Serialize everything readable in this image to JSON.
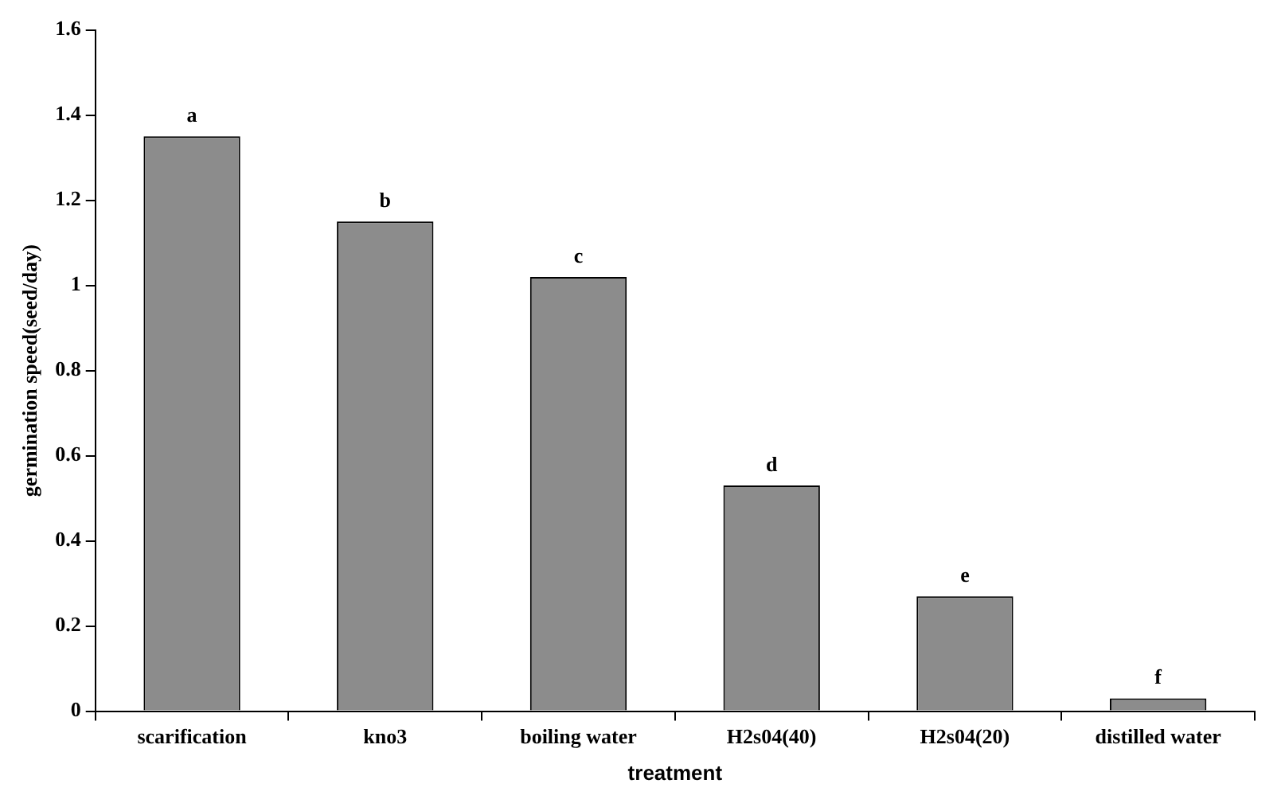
{
  "chart_data": {
    "type": "bar",
    "xlabel": "treatment",
    "ylabel": "germination speed(seed/day)",
    "categories": [
      "scarification",
      "kno3",
      "boiling water",
      "H2s04(40)",
      "H2s04(20)",
      "distilled water"
    ],
    "values": [
      1.35,
      1.15,
      1.02,
      0.53,
      0.27,
      0.03
    ],
    "color": "#8c8c8c",
    "ylim": [
      0,
      1.6
    ],
    "yticks": [
      0,
      0.2,
      0.4,
      0.6,
      0.8,
      1,
      1.2,
      1.4,
      1.6
    ],
    "grid": false,
    "legend": false,
    "annotations": [
      {
        "text": "a",
        "x": "scarification",
        "y": 1.35
      },
      {
        "text": "b",
        "x": "kno3",
        "y": 1.15
      },
      {
        "text": "c",
        "x": "boiling water",
        "y": 1.02
      },
      {
        "text": "d",
        "x": "H2s04(40)",
        "y": 0.53
      },
      {
        "text": "e",
        "x": "H2s04(20)",
        "y": 0.27
      },
      {
        "text": "f",
        "x": "distilled water",
        "y": 0.03
      }
    ]
  }
}
